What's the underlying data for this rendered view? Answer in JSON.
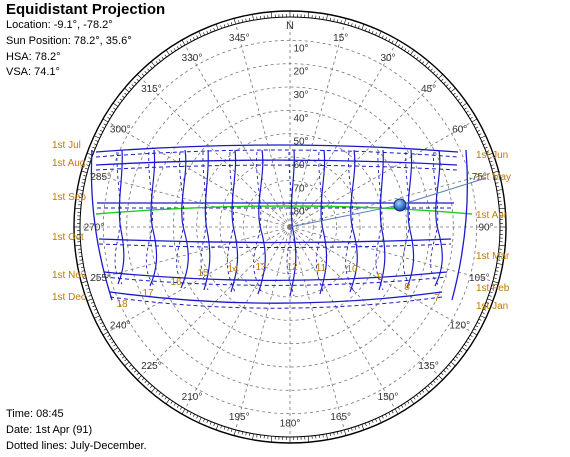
{
  "title": "Equidistant Projection",
  "info": {
    "location": "Location: -9.1°, -78.2°",
    "sun_position": "Sun Position: 78.2°, 35.6°",
    "hsa": "HSA: 78.2°",
    "vsa": "VSA: 74.1°"
  },
  "footer": {
    "time": "Time: 08:45",
    "date": "Date: 1st Apr (91)",
    "note": "Dotted lines: July-December."
  },
  "chart_data": {
    "type": "polar-sunpath",
    "north_label": "N",
    "azimuth_labels": [
      "15°",
      "30°",
      "45°",
      "60°",
      "75°",
      "90°",
      "105°",
      "120°",
      "135°",
      "150°",
      "165°",
      "180°",
      "195°",
      "210°",
      "225°",
      "240°",
      "255°",
      "270°",
      "285°",
      "300°",
      "315°",
      "330°",
      "345°"
    ],
    "altitude_labels": [
      "10°",
      "20°",
      "30°",
      "40°",
      "50°",
      "60°",
      "70°",
      "80°"
    ],
    "month_labels_left": [
      "1st Jul",
      "1st Aug",
      "1st Sep",
      "1st Oct",
      "1st Nov",
      "1st Dec"
    ],
    "month_labels_right": [
      "1st Jun",
      "1st May",
      "1st Apr",
      "1st Mar",
      "1st Feb",
      "1st Jan"
    ],
    "hour_labels": [
      "18",
      "17",
      "16",
      "15",
      "14",
      "13",
      "12",
      "11",
      "10",
      "9",
      "8",
      "7"
    ],
    "sun": {
      "azimuth": 78.2,
      "altitude": 35.6
    },
    "colors": {
      "sunpath": "#1a1acc",
      "current_day": "#22cc22",
      "label": "#c07a00",
      "grid": "#777777",
      "sun": "#2a5fc8"
    }
  }
}
